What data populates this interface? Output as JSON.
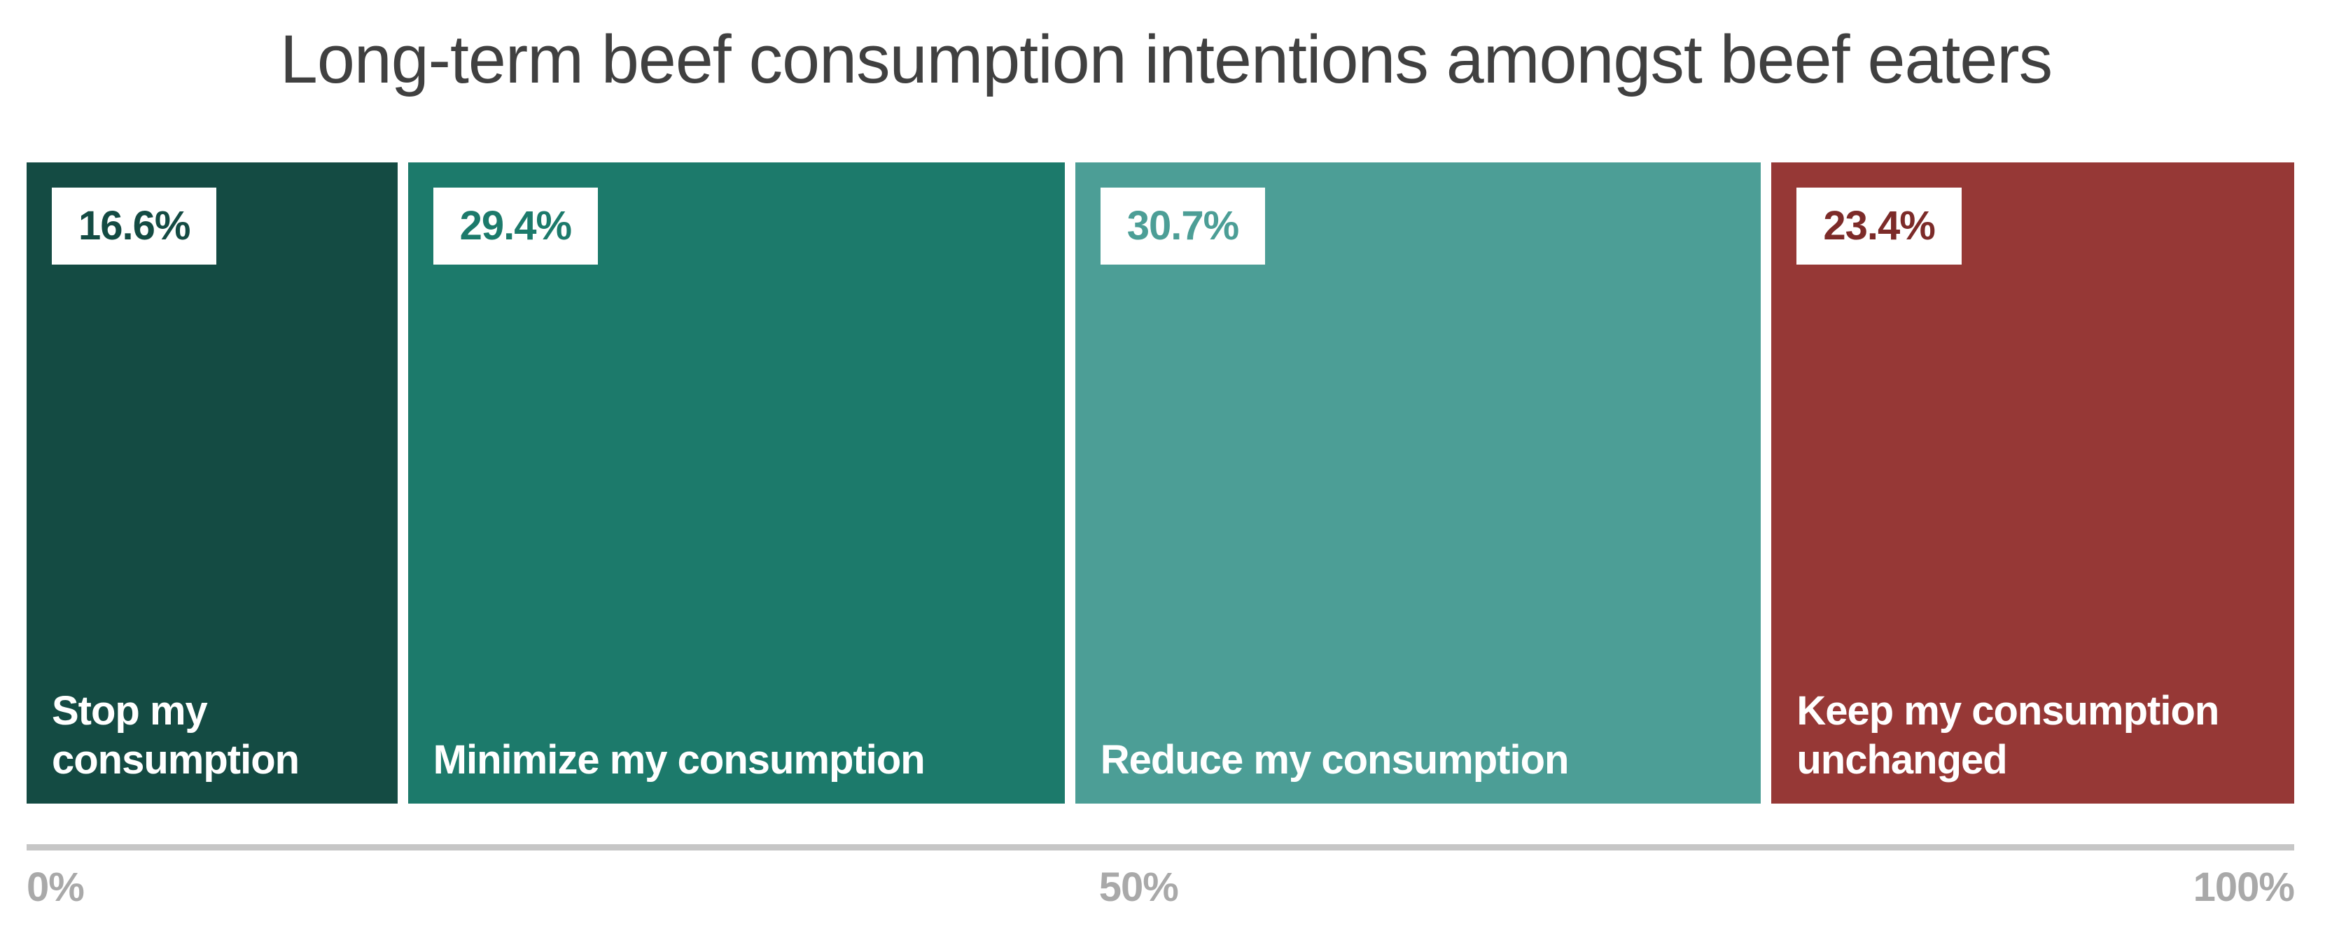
{
  "page": {
    "background": "#ffffff"
  },
  "title": {
    "text": "Long-term beef consumption intentions amongst beef eaters",
    "color": "#404040"
  },
  "chart_data": {
    "type": "bar",
    "subtype": "100pct-stacked-horizontal",
    "title": "Long-term beef consumption intentions amongst beef eaters",
    "unit": "%",
    "xlim": [
      0,
      100
    ],
    "x_tick_labels": [
      "0%",
      "50%",
      "100%"
    ],
    "grid": false,
    "legend": "none",
    "categories": [
      "Stop my consumption",
      "Minimize my consumption",
      "Reduce my consumption",
      "Keep my consumption unchanged"
    ],
    "values": [
      16.6,
      29.4,
      30.7,
      23.4
    ],
    "segments": [
      {
        "category": "Stop my consumption",
        "value": 16.6,
        "value_label": "16.6%",
        "fill": "#144B43",
        "value_label_color": "#144B43"
      },
      {
        "category": "Minimize my consumption",
        "value": 29.4,
        "value_label": "29.4%",
        "fill": "#1C7A6B",
        "value_label_color": "#1C7A6B"
      },
      {
        "category": "Reduce my consumption",
        "value": 30.7,
        "value_label": "30.7%",
        "fill": "#4C9E96",
        "value_label_color": "#4C9E96"
      },
      {
        "category": "Keep my consumption unchanged",
        "value": 23.4,
        "value_label": "23.4%",
        "fill": "#963836",
        "value_label_color": "#7C2B29"
      }
    ]
  },
  "axis": {
    "line_color": "#C6C6C6",
    "tick_color": "#A9A9A9",
    "ticks": [
      {
        "label": "0%"
      },
      {
        "label": "50%"
      },
      {
        "label": "100%"
      }
    ]
  }
}
